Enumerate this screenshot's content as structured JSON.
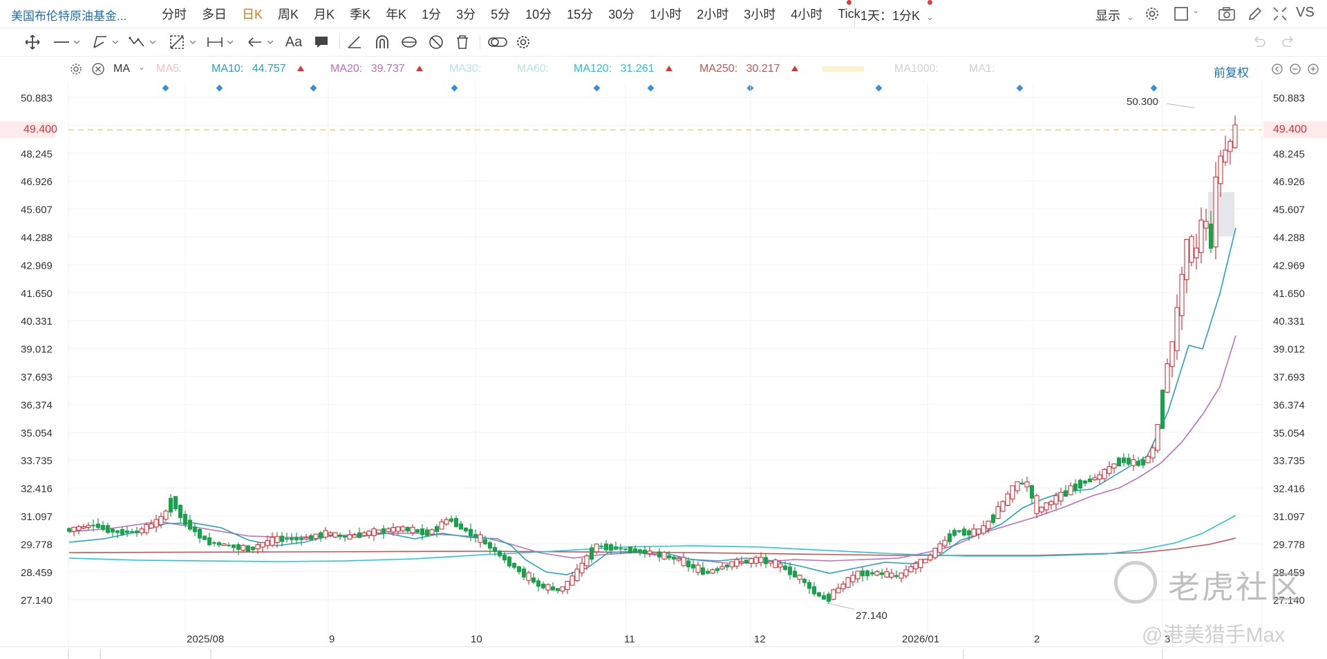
{
  "header": {
    "symbol": "美国布伦特原油基金...",
    "periods": [
      "分时",
      "多日",
      "日K",
      "周K",
      "月K",
      "季K",
      "年K",
      "1分",
      "3分",
      "5分",
      "10分",
      "15分",
      "30分",
      "1小时",
      "2小时",
      "3小时",
      "4小时",
      "Tick"
    ],
    "active_period": "日K",
    "compare": "1天：1分K",
    "display": "显示",
    "vs": "VS"
  },
  "toolbar": {
    "text_tool": "Aa"
  },
  "ma_bar": {
    "indicator": "MA",
    "adjust": "前复权",
    "items": [
      {
        "label": "MA5:",
        "value": "",
        "color": "#f2c2c2",
        "up": false
      },
      {
        "label": "MA10:",
        "value": "44.757",
        "color": "#22a3bf",
        "up": true
      },
      {
        "label": "MA20:",
        "value": "39.737",
        "color": "#c06cc0",
        "up": true
      },
      {
        "label": "MA30:",
        "value": "",
        "color": "#b7dff0",
        "up": false
      },
      {
        "label": "MA60:",
        "value": "",
        "color": "#b7e6dd",
        "up": false
      },
      {
        "label": "MA120:",
        "value": "31.261",
        "color": "#1fc6d8",
        "up": true
      },
      {
        "label": "MA250:",
        "value": "30.217",
        "color": "#cf5151",
        "up": true
      },
      {
        "label": "MA1000:",
        "value": "",
        "color": "#d0d0d0",
        "up": false
      },
      {
        "label": "MA1:",
        "value": "",
        "color": "#d0d0d0",
        "up": false
      }
    ]
  },
  "y_axis": {
    "ticks": [
      "50.883",
      "49.400",
      "48.245",
      "46.926",
      "45.607",
      "44.288",
      "42.969",
      "41.650",
      "40.331",
      "39.012",
      "37.693",
      "36.374",
      "35.054",
      "33.735",
      "32.416",
      "31.097",
      "29.778",
      "28.459",
      "27.140"
    ],
    "current_price": "49.400"
  },
  "x_axis": {
    "labels": [
      "2025/08",
      "9",
      "10",
      "11",
      "12",
      "2026/01",
      "2",
      "3"
    ]
  },
  "annotations": {
    "high": "50.300",
    "low": "27.140"
  },
  "watermark": {
    "brand": "老虎社区",
    "author": "@港美猎手Max"
  },
  "colors": {
    "up": "#d9343a",
    "down": "#16a34a",
    "ma10": "#22a3bf",
    "ma20": "#c06cc0",
    "ma120": "#1fc6d8",
    "ma250": "#cf5151"
  }
}
